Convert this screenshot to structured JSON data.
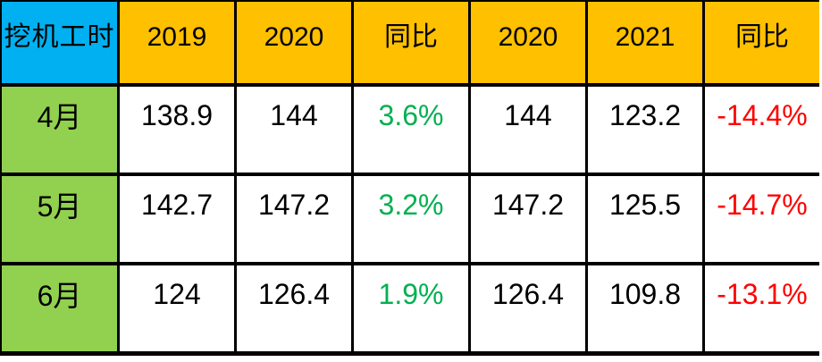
{
  "colors": {
    "header-blue": "#00B0F0",
    "header-orange": "#FFC000",
    "month-green": "#92D050",
    "positive-green": "#00B050",
    "negative-red": "#FF0000",
    "border-black": "#000000",
    "cell-white": "#FFFFFF",
    "text-black": "#000000"
  },
  "table": {
    "corner_label": "挖机工时",
    "col_headers": [
      "2019",
      "2020",
      "同比",
      "2020",
      "2021",
      "同比"
    ],
    "rows": [
      {
        "label": "4月",
        "cells": [
          {
            "value": "138.9",
            "tone": "default"
          },
          {
            "value": "144",
            "tone": "default"
          },
          {
            "value": "3.6%",
            "tone": "up"
          },
          {
            "value": "144",
            "tone": "default"
          },
          {
            "value": "123.2",
            "tone": "default"
          },
          {
            "value": "-14.4%",
            "tone": "down"
          }
        ]
      },
      {
        "label": "5月",
        "cells": [
          {
            "value": "142.7",
            "tone": "default"
          },
          {
            "value": "147.2",
            "tone": "default"
          },
          {
            "value": "3.2%",
            "tone": "up"
          },
          {
            "value": "147.2",
            "tone": "default"
          },
          {
            "value": "125.5",
            "tone": "default"
          },
          {
            "value": "-14.7%",
            "tone": "down"
          }
        ]
      },
      {
        "label": "6月",
        "cells": [
          {
            "value": "124",
            "tone": "default"
          },
          {
            "value": "126.4",
            "tone": "default"
          },
          {
            "value": "1.9%",
            "tone": "up"
          },
          {
            "value": "126.4",
            "tone": "default"
          },
          {
            "value": "109.8",
            "tone": "default"
          },
          {
            "value": "-13.1%",
            "tone": "down"
          }
        ]
      }
    ]
  },
  "chart_data": {
    "type": "table",
    "title": "挖机工时",
    "columns": [
      "挖机工时",
      "2019",
      "2020",
      "同比",
      "2020",
      "2021",
      "同比"
    ],
    "rows": [
      [
        "4月",
        138.9,
        144,
        "3.6%",
        144,
        123.2,
        "-14.4%"
      ],
      [
        "5月",
        142.7,
        147.2,
        "3.2%",
        147.2,
        125.5,
        "-14.7%"
      ],
      [
        "6月",
        124,
        126.4,
        "1.9%",
        126.4,
        109.8,
        "-13.1%"
      ]
    ],
    "notes": {
      "yoy_2019_2020": [
        "3.6%",
        "3.2%",
        "1.9%"
      ],
      "yoy_2020_2021": [
        "-14.4%",
        "-14.7%",
        "-13.1%"
      ]
    }
  }
}
